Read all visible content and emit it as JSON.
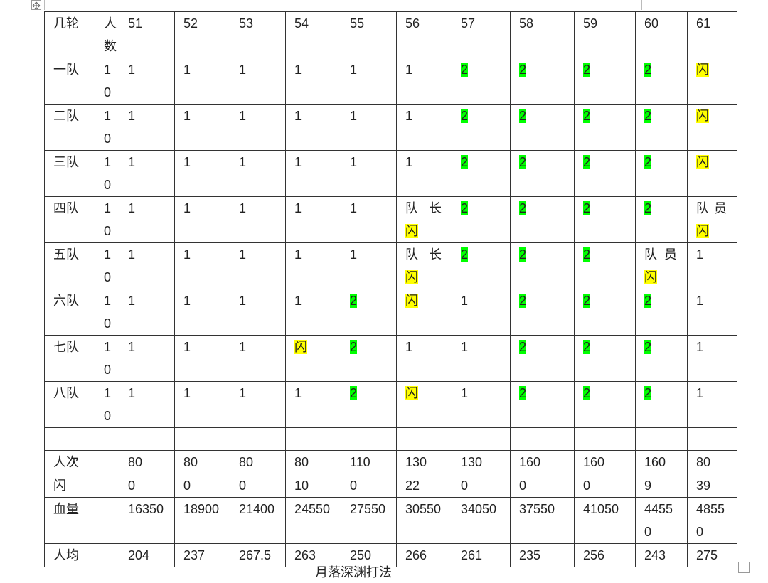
{
  "table": {
    "header": [
      "几轮",
      "人数",
      "51",
      "52",
      "53",
      "54",
      "55",
      "56",
      "57",
      "58",
      "59",
      "60",
      "61"
    ],
    "rows": [
      [
        "一队",
        "10",
        "1",
        "1",
        "1",
        "1",
        "1",
        "1",
        [
          {
            "text": "2",
            "highlight": "#00ff00"
          }
        ],
        [
          {
            "text": "2",
            "highlight": "#00ff00"
          }
        ],
        [
          {
            "text": "2",
            "highlight": "#00ff00"
          }
        ],
        [
          {
            "text": "2",
            "highlight": "#00ff00"
          }
        ],
        [
          {
            "text": "闪",
            "highlight": "#ffff00"
          }
        ]
      ],
      [
        "二队",
        "10",
        "1",
        "1",
        "1",
        "1",
        "1",
        "1",
        [
          {
            "text": "2",
            "highlight": "#00ff00"
          }
        ],
        [
          {
            "text": "2",
            "highlight": "#00ff00"
          }
        ],
        [
          {
            "text": "2",
            "highlight": "#00ff00"
          }
        ],
        [
          {
            "text": "2",
            "highlight": "#00ff00"
          }
        ],
        [
          {
            "text": "闪",
            "highlight": "#ffff00"
          }
        ]
      ],
      [
        "三队",
        "10",
        "1",
        "1",
        "1",
        "1",
        "1",
        "1",
        [
          {
            "text": "2",
            "highlight": "#00ff00"
          }
        ],
        [
          {
            "text": "2",
            "highlight": "#00ff00"
          }
        ],
        [
          {
            "text": "2",
            "highlight": "#00ff00"
          }
        ],
        [
          {
            "text": "2",
            "highlight": "#00ff00"
          }
        ],
        [
          {
            "text": "闪",
            "highlight": "#ffff00"
          }
        ]
      ],
      [
        "四队",
        "10",
        "1",
        "1",
        "1",
        "1",
        "1",
        [
          {
            "text": "队长"
          },
          {
            "text": "闪",
            "highlight": "#ffff00"
          }
        ],
        [
          {
            "text": "2",
            "highlight": "#00ff00"
          }
        ],
        [
          {
            "text": "2",
            "highlight": "#00ff00"
          }
        ],
        [
          {
            "text": "2",
            "highlight": "#00ff00"
          }
        ],
        [
          {
            "text": "2",
            "highlight": "#00ff00"
          }
        ],
        [
          {
            "text": "队员"
          },
          {
            "text": "闪",
            "highlight": "#ffff00"
          }
        ]
      ],
      [
        "五队",
        "10",
        "1",
        "1",
        "1",
        "1",
        "1",
        [
          {
            "text": "队长"
          },
          {
            "text": "闪",
            "highlight": "#ffff00"
          }
        ],
        [
          {
            "text": "2",
            "highlight": "#00ff00"
          }
        ],
        [
          {
            "text": "2",
            "highlight": "#00ff00"
          }
        ],
        [
          {
            "text": "2",
            "highlight": "#00ff00"
          }
        ],
        [
          {
            "text": "队员"
          },
          {
            "text": "闪",
            "highlight": "#ffff00"
          }
        ],
        "1"
      ],
      [
        "六队",
        "10",
        "1",
        "1",
        "1",
        "1",
        [
          {
            "text": "2",
            "highlight": "#00ff00"
          }
        ],
        [
          {
            "text": "闪",
            "highlight": "#ffff00"
          }
        ],
        "1",
        [
          {
            "text": "2",
            "highlight": "#00ff00"
          }
        ],
        [
          {
            "text": "2",
            "highlight": "#00ff00"
          }
        ],
        [
          {
            "text": "2",
            "highlight": "#00ff00"
          }
        ],
        "1"
      ],
      [
        "七队",
        "10",
        "1",
        "1",
        "1",
        [
          {
            "text": "闪",
            "highlight": "#ffff00"
          }
        ],
        [
          {
            "text": "2",
            "highlight": "#00ff00"
          }
        ],
        "1",
        "1",
        [
          {
            "text": "2",
            "highlight": "#00ff00"
          }
        ],
        [
          {
            "text": "2",
            "highlight": "#00ff00"
          }
        ],
        [
          {
            "text": "2",
            "highlight": "#00ff00"
          }
        ],
        "1"
      ],
      [
        "八队",
        "10",
        "1",
        "1",
        "1",
        "1",
        [
          {
            "text": "2",
            "highlight": "#00ff00"
          }
        ],
        [
          {
            "text": "闪",
            "highlight": "#ffff00"
          }
        ],
        "1",
        [
          {
            "text": "2",
            "highlight": "#00ff00"
          }
        ],
        [
          {
            "text": "2",
            "highlight": "#00ff00"
          }
        ],
        [
          {
            "text": "2",
            "highlight": "#00ff00"
          }
        ],
        "1"
      ],
      [
        null,
        null,
        null,
        null,
        null,
        null,
        null,
        null,
        null,
        null,
        null,
        null,
        null
      ],
      [
        "人次",
        null,
        "80",
        "80",
        "80",
        "80",
        "110",
        "130",
        "130",
        "160",
        "160",
        "160",
        "80"
      ],
      [
        "闪",
        null,
        "0",
        "0",
        "0",
        "10",
        "0",
        "22",
        "0",
        "0",
        "0",
        "9",
        "39"
      ],
      [
        "血量",
        null,
        "16350",
        "18900",
        "21400",
        "24550",
        "27550",
        "30550",
        "34050",
        "37550",
        "41050",
        "44550",
        "48550"
      ],
      [
        "人均",
        null,
        "204",
        "237",
        "267.5",
        "263",
        "250",
        "266",
        "261",
        "235",
        "256",
        "243",
        "275"
      ]
    ],
    "caption": "月落深渊打法"
  }
}
